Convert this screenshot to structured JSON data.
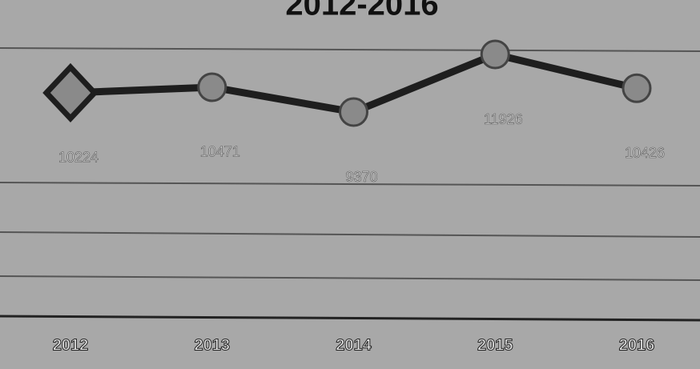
{
  "chart_data": {
    "type": "line",
    "title": "2012-2016",
    "categories": [
      "2012",
      "2013",
      "2014",
      "2015",
      "2016"
    ],
    "values": [
      10224,
      10471,
      9370,
      11926,
      10426
    ],
    "color": "#1e1e1e",
    "marker_color": "#8a8a8a"
  }
}
